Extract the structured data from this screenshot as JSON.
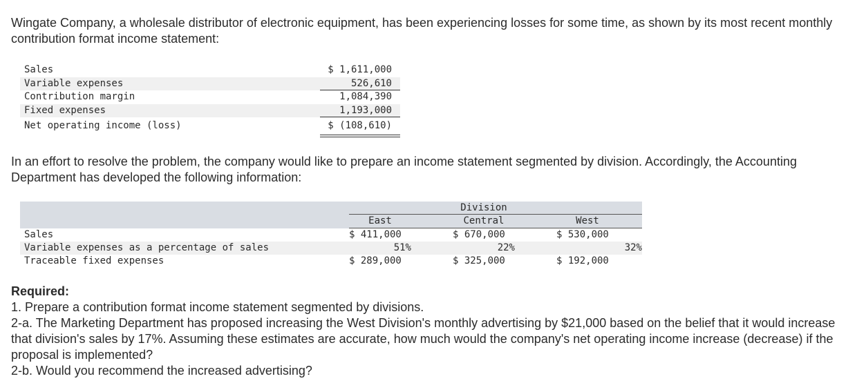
{
  "intro": "Wingate Company, a wholesale distributor of electronic equipment, has been experiencing losses for some time, as shown by its most recent monthly contribution format income statement:",
  "statement": {
    "rows": [
      {
        "label": "Sales",
        "amount": "$ 1,611,000"
      },
      {
        "label": "Variable expenses",
        "amount": "526,610"
      },
      {
        "label": "Contribution margin",
        "amount": "1,084,390"
      },
      {
        "label": "Fixed expenses",
        "amount": "1,193,000"
      },
      {
        "label": "Net operating income (loss)",
        "amount": "$ (108,610)"
      }
    ]
  },
  "middle_text": "In an effort to resolve the problem, the company would like to prepare an income statement segmented by division. Accordingly, the Accounting Department has developed the following information:",
  "division_table": {
    "group_header": "Division",
    "columns": [
      "East",
      "Central",
      "West"
    ],
    "rows": [
      {
        "label": "Sales",
        "east": "$ 411,000",
        "central": "$ 670,000",
        "west": "$ 530,000"
      },
      {
        "label": "Variable expenses as a percentage of sales",
        "east": "51%",
        "central": "22%",
        "west": "32%"
      },
      {
        "label": "Traceable fixed expenses",
        "east": "$ 289,000",
        "central": "$ 325,000",
        "west": "$ 192,000"
      }
    ]
  },
  "required": {
    "heading": "Required:",
    "items": [
      "1. Prepare a contribution format income statement segmented by divisions.",
      "2-a. The Marketing Department has proposed increasing the West Division's monthly advertising by $21,000 based on the belief that it would increase that division's sales by 17%. Assuming these estimates are accurate, how much would the company's net operating income increase (decrease) if the proposal is implemented?",
      "2-b. Would you recommend the increased advertising?"
    ]
  }
}
